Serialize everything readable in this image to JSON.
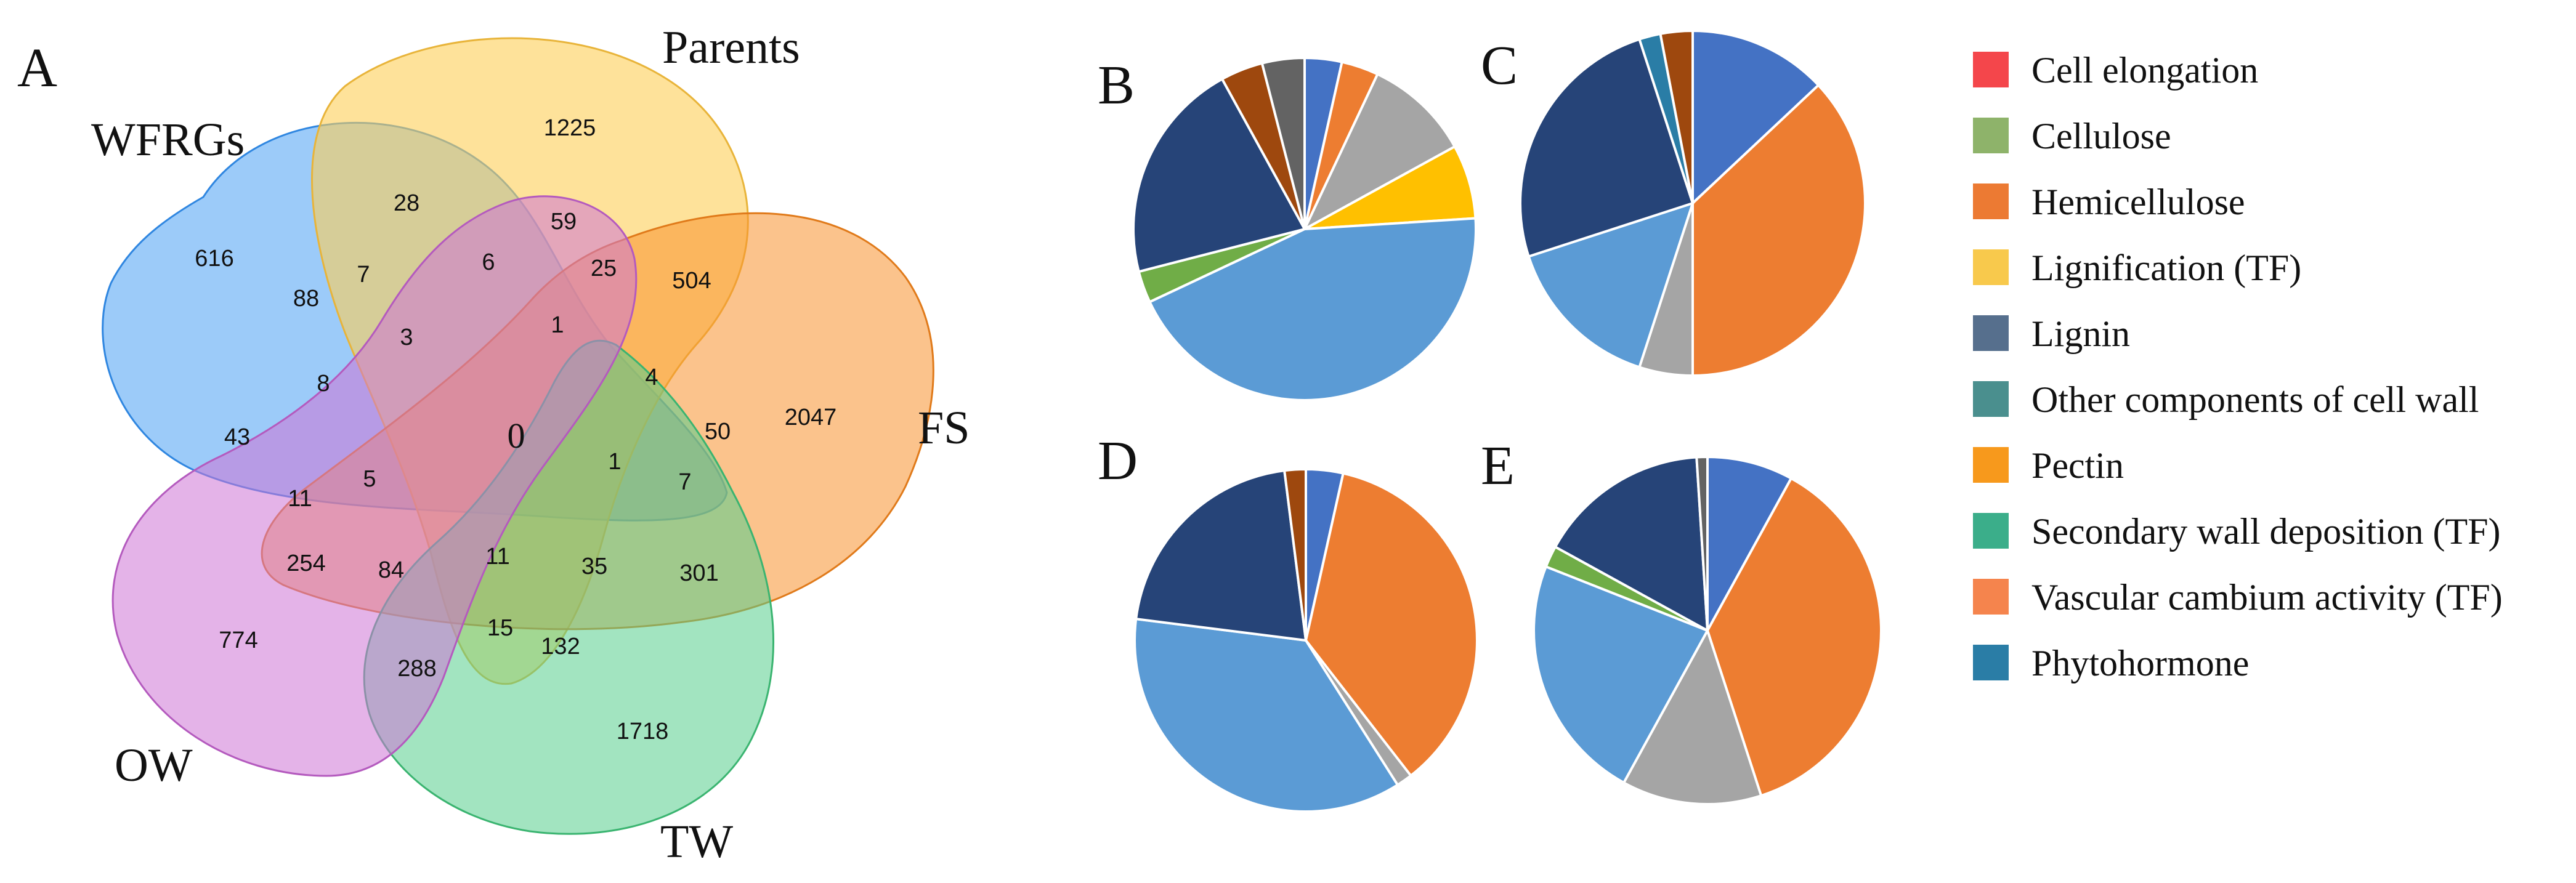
{
  "panels": {
    "venn": "A",
    "pie_b": "B",
    "pie_c": "C",
    "pie_d": "D",
    "pie_e": "E"
  },
  "legend": [
    {
      "name": "Cell elongation",
      "color": "#F4464B"
    },
    {
      "name": "Cellulose",
      "color": "#8EB36A"
    },
    {
      "name": "Hemicellulose",
      "color": "#EC7A33"
    },
    {
      "name": "Lignification (TF)",
      "color": "#F8C94C"
    },
    {
      "name": "Lignin",
      "color": "#566F8D"
    },
    {
      "name": "Other components of cell wall",
      "color": "#4A8F8E"
    },
    {
      "name": "Pectin",
      "color": "#F7991C"
    },
    {
      "name": "Secondary wall deposition (TF)",
      "color": "#3BAE8A"
    },
    {
      "name": "Vascular cambium activity (TF)",
      "color": "#F5844D"
    },
    {
      "name": "Phytohormone",
      "color": "#2A7DA6"
    }
  ],
  "chart_data": [
    {
      "type": "venn",
      "panel": "A",
      "sets": [
        {
          "name": "WFRGs",
          "color": "#5AA9F5"
        },
        {
          "name": "Parents",
          "color": "#FDCF56"
        },
        {
          "name": "FS",
          "color": "#F7922E"
        },
        {
          "name": "TW",
          "color": "#56CE8C"
        },
        {
          "name": "OW",
          "color": "#CE74D6"
        }
      ],
      "counts": [
        "616",
        "1225",
        "2047",
        "1718",
        "774",
        "28",
        "59",
        "88",
        "7",
        "6",
        "25",
        "504",
        "3",
        "1",
        "8",
        "4",
        "0",
        "50",
        "43",
        "11",
        "5",
        "1",
        "7",
        "254",
        "84",
        "11",
        "35",
        "301",
        "15",
        "132",
        "288"
      ]
    },
    {
      "type": "pie",
      "panel": "B",
      "slices": [
        {
          "color": "#4472C4",
          "value": 3.5
        },
        {
          "color": "#ED7D31",
          "value": 3.5
        },
        {
          "color": "#A5A5A5",
          "value": 10
        },
        {
          "color": "#FFC000",
          "value": 7
        },
        {
          "color": "#5B9BD5",
          "value": 44
        },
        {
          "color": "#70AD47",
          "value": 3
        },
        {
          "color": "#264478",
          "value": 21
        },
        {
          "color": "#9E480E",
          "value": 4
        },
        {
          "color": "#636363",
          "value": 4
        }
      ]
    },
    {
      "type": "pie",
      "panel": "C",
      "slices": [
        {
          "color": "#4472C4",
          "value": 13
        },
        {
          "color": "#ED7D31",
          "value": 37
        },
        {
          "color": "#A5A5A5",
          "value": 5
        },
        {
          "color": "#5B9BD5",
          "value": 15
        },
        {
          "color": "#264478",
          "value": 25
        },
        {
          "color": "#2A7DA6",
          "value": 2
        },
        {
          "color": "#9E480E",
          "value": 3
        }
      ]
    },
    {
      "type": "pie",
      "panel": "D",
      "slices": [
        {
          "color": "#4472C4",
          "value": 3.5
        },
        {
          "color": "#ED7D31",
          "value": 36
        },
        {
          "color": "#A5A5A5",
          "value": 1.5
        },
        {
          "color": "#5B9BD5",
          "value": 36
        },
        {
          "color": "#264478",
          "value": 21
        },
        {
          "color": "#9E480E",
          "value": 2
        }
      ]
    },
    {
      "type": "pie",
      "panel": "E",
      "slices": [
        {
          "color": "#4472C4",
          "value": 8
        },
        {
          "color": "#ED7D31",
          "value": 37
        },
        {
          "color": "#A5A5A5",
          "value": 13
        },
        {
          "color": "#5B9BD5",
          "value": 23
        },
        {
          "color": "#70AD47",
          "value": 2
        },
        {
          "color": "#264478",
          "value": 16
        },
        {
          "color": "#636363",
          "value": 1
        }
      ]
    }
  ]
}
